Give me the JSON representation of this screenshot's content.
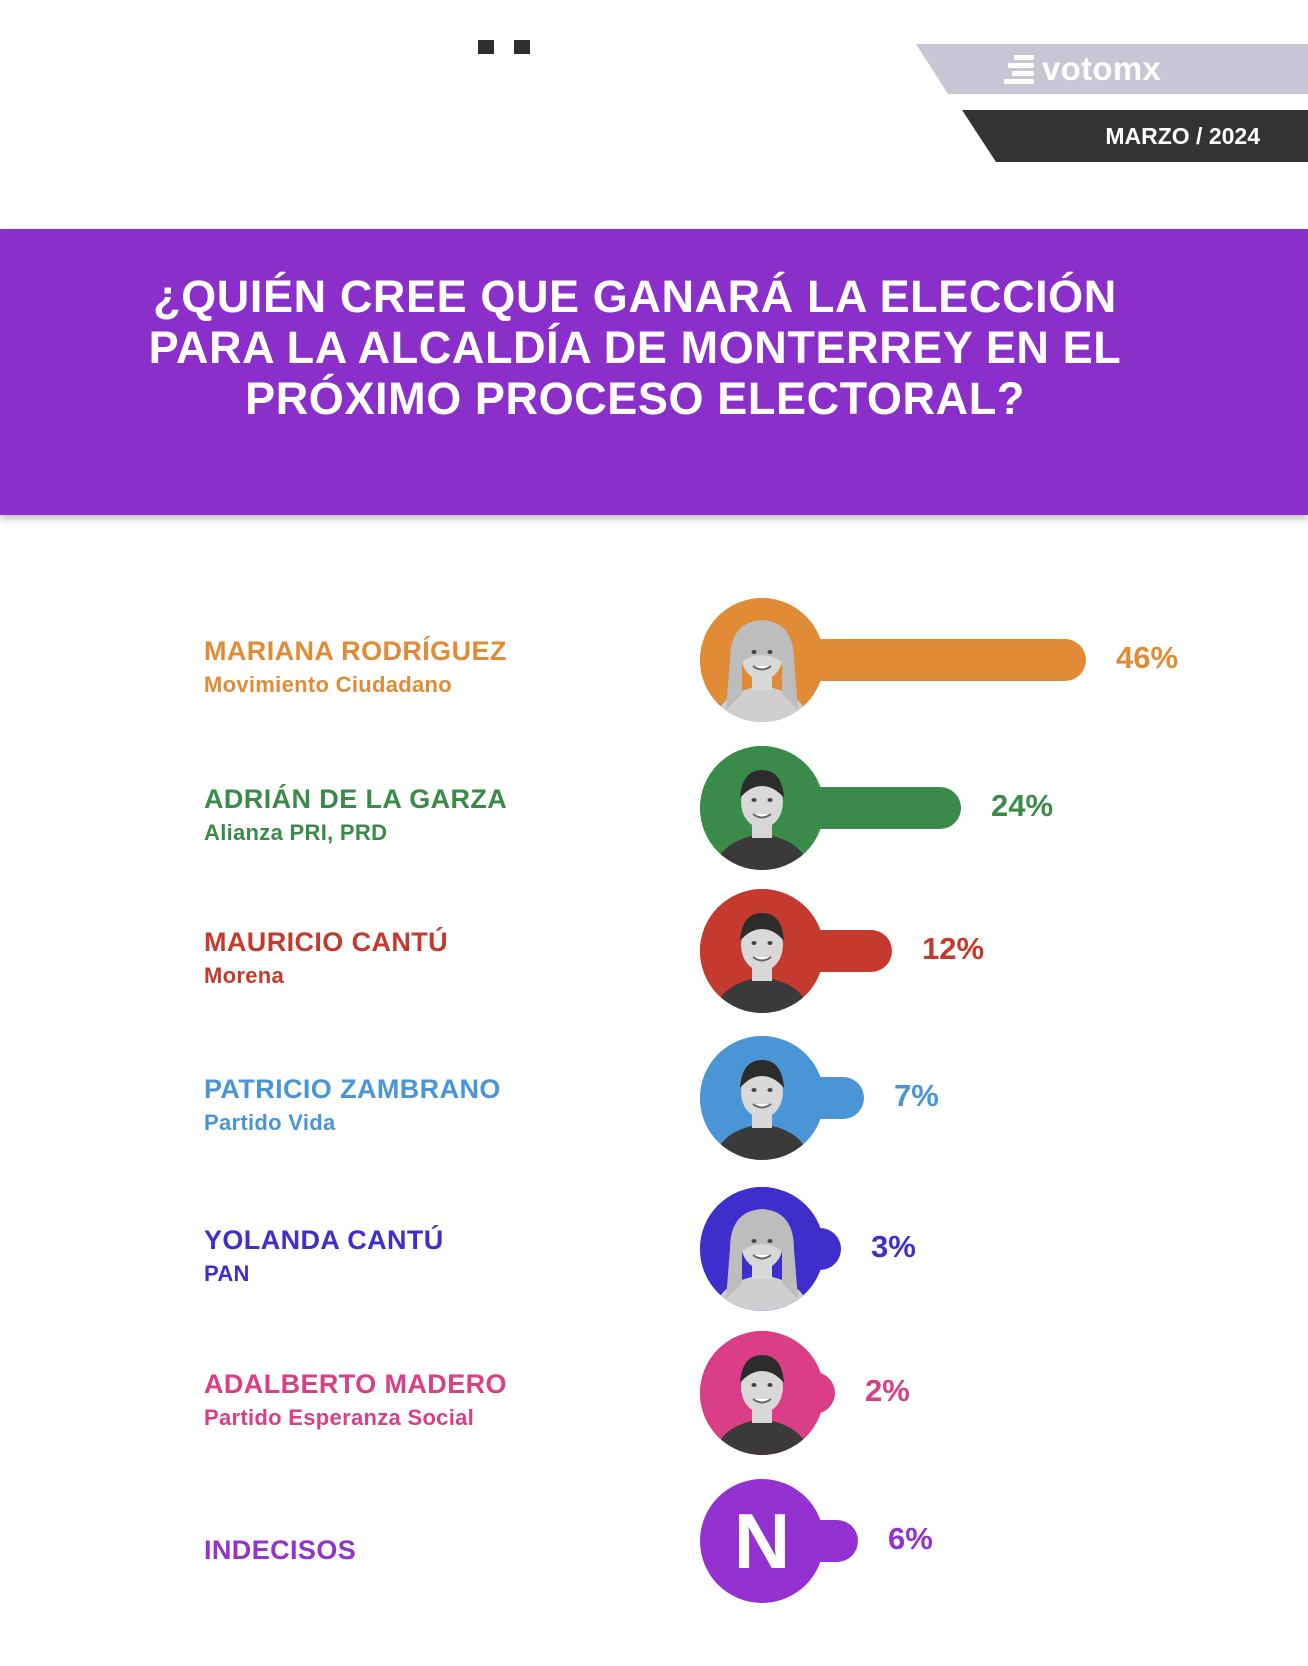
{
  "header": {
    "brand_name": "votomx",
    "date": "MARZO / 2024",
    "colors": {
      "brand_band": "#c7c6d4",
      "date_band": "#333333",
      "title_band": "#8b2fcb"
    }
  },
  "title": "¿QUIÉN CREE QUE GANARÁ LA ELECCIÓN PARA LA ALCALDÍA DE MONTERREY EN EL PRÓXIMO PROCESO ELECTORAL?",
  "chart_data": {
    "type": "bar",
    "orientation": "horizontal",
    "title": "¿QUIÉN CREE QUE GANARÁ LA ELECCIÓN PARA LA ALCALDÍA DE MONTERREY EN EL PRÓXIMO PROCESO ELECTORAL?",
    "unit": "%",
    "xlim": [
      0,
      46
    ],
    "grid": false,
    "legend": "none",
    "items": [
      {
        "name": "MARIANA RODRÍGUEZ",
        "party": "Movimiento Ciudadano",
        "value": 46,
        "label": "46%",
        "color": "#e08b36",
        "avatar": "photo"
      },
      {
        "name": "ADRIÁN DE LA GARZA",
        "party": "Alianza PRI, PRD",
        "value": 24,
        "label": "24%",
        "color": "#3a8a4a",
        "avatar": "photo"
      },
      {
        "name": "MAURICIO CANTÚ",
        "party": "Morena",
        "value": 12,
        "label": "12%",
        "color": "#c43a2e",
        "avatar": "photo"
      },
      {
        "name": "PATRICIO ZAMBRANO",
        "party": "Partido Vida",
        "value": 7,
        "label": "7%",
        "color": "#4a95d5",
        "avatar": "photo"
      },
      {
        "name": "YOLANDA CANTÚ",
        "party": "PAN",
        "value": 3,
        "label": "3%",
        "color": "#3e2fcc",
        "avatar": "photo"
      },
      {
        "name": "ADALBERTO MADERO",
        "party": "Partido Esperanza Social",
        "value": 2,
        "label": "2%",
        "color": "#d93e86",
        "avatar": "photo"
      },
      {
        "name": "INDECISOS",
        "party": "",
        "value": 6,
        "label": "6%",
        "color": "#9332d0",
        "avatar": "N"
      }
    ]
  }
}
